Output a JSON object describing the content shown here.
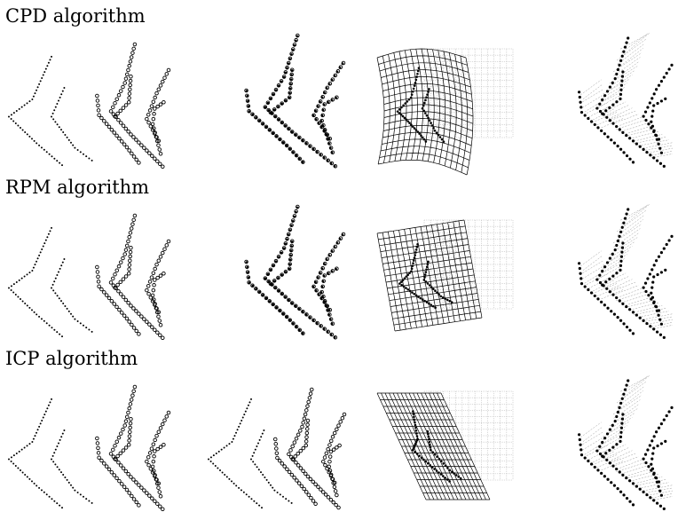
{
  "rows": [
    {
      "title": "CPD algorithm",
      "warp": "curved"
    },
    {
      "title": "RPM algorithm",
      "warp": "shear"
    },
    {
      "title": "ICP algorithm",
      "warp": "skew"
    }
  ],
  "panels_per_row": [
    "initial",
    "result",
    "deformation-grid",
    "correspondences"
  ],
  "colors": {
    "text": "#000000",
    "points": "#000000",
    "grid": "#b0b0b0",
    "correspondence_lines": "#9a9a9a"
  }
}
